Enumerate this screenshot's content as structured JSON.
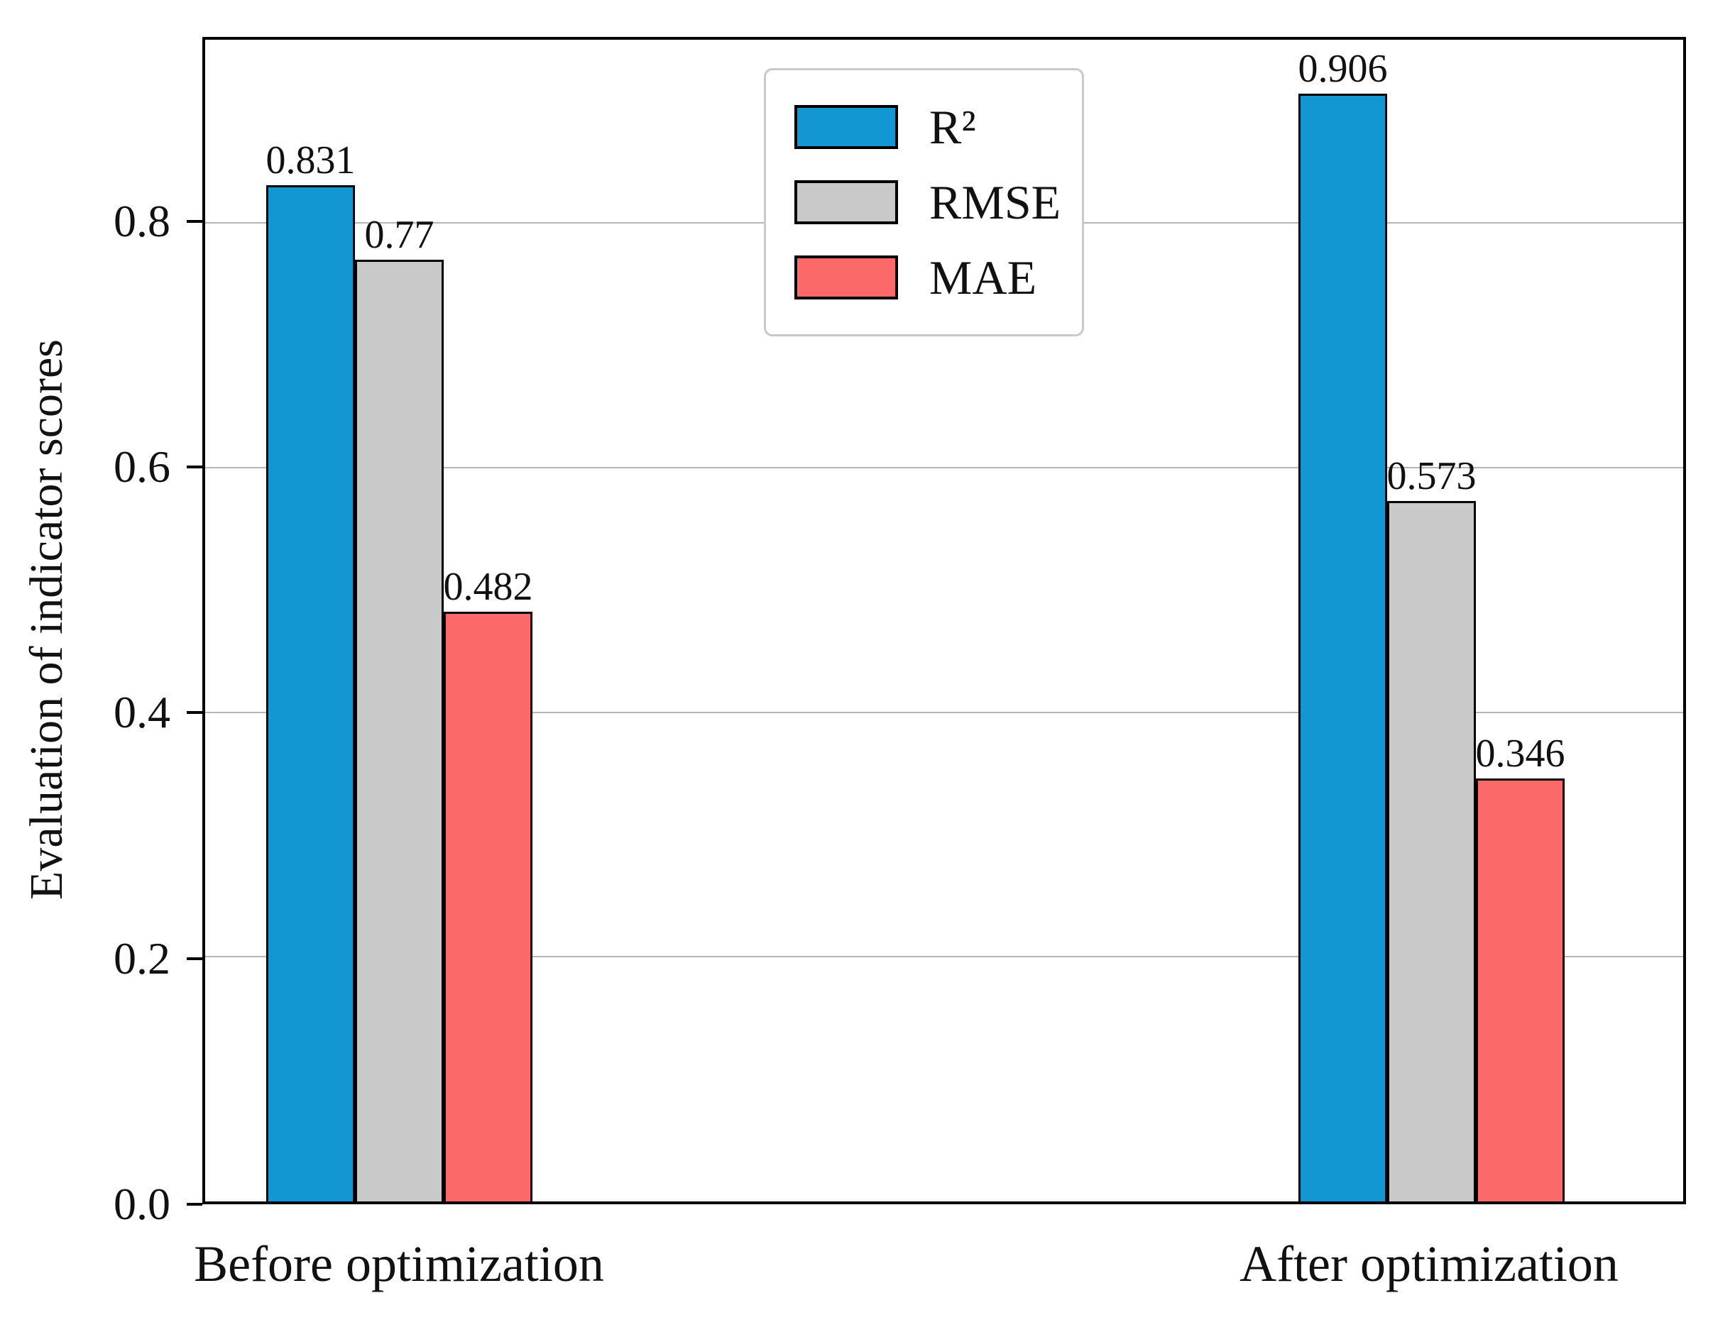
{
  "chart_data": {
    "type": "bar",
    "title": "",
    "xlabel": "",
    "ylabel": "Evaluation of indicator scores",
    "categories": [
      "Before optimization",
      "After optimization"
    ],
    "series": [
      {
        "name": "R²",
        "color": "#1297d3",
        "values": [
          0.831,
          0.906
        ],
        "value_labels": [
          "0.831",
          "0.906"
        ]
      },
      {
        "name": "RMSE",
        "color": "#c9c9c9",
        "values": [
          0.77,
          0.573
        ],
        "value_labels": [
          "0.77",
          "0.573"
        ]
      },
      {
        "name": "MAE",
        "color": "#fb6a68",
        "values": [
          0.482,
          0.346
        ],
        "value_labels": [
          "0.482",
          "0.346"
        ]
      }
    ],
    "yticks": [
      {
        "label": "0.0",
        "value": 0.0
      },
      {
        "label": "0.2",
        "value": 0.2
      },
      {
        "label": "0.4",
        "value": 0.4
      },
      {
        "label": "0.6",
        "value": 0.6
      },
      {
        "label": "0.8",
        "value": 0.8
      }
    ],
    "ylim": [
      0,
      0.95
    ],
    "grid": "horizontal",
    "gridline_color": "#b5b5b5",
    "bar_edge_color": "#000000",
    "legend_position": "upper center"
  }
}
